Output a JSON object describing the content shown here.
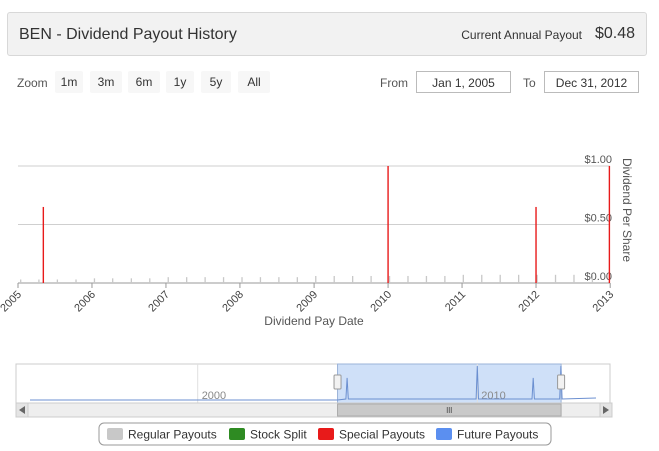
{
  "header": {
    "title": "BEN - Dividend Payout History",
    "current_label": "Current Annual Payout",
    "current_value": "$0.48"
  },
  "controls": {
    "zoom_label": "Zoom",
    "zoom_buttons": [
      "1m",
      "3m",
      "6m",
      "1y",
      "5y",
      "All"
    ],
    "from_label": "From",
    "from_value": "Jan 1, 2005",
    "to_label": "To",
    "to_value": "Dec 31, 2012"
  },
  "legend": [
    "Regular Payouts",
    "Stock Split",
    "Special Payouts",
    "Future Payouts"
  ],
  "colors": {
    "regular": "#c8c8c8",
    "split": "#2e8b22",
    "special": "#e81a1a",
    "future": "#5b8ff0",
    "navigator_line": "#6b8fd0",
    "navigator_selection": "#cfe0f8"
  },
  "chart_data": {
    "type": "bar",
    "xlabel": "Dividend Pay Date",
    "ylabel": "Dividend Per Share",
    "xlim": [
      "2005-01-01",
      "2012-12-31"
    ],
    "ylim": [
      0,
      1.0
    ],
    "y_ticks": [
      "$0.00",
      "$0.50",
      "$1.00"
    ],
    "x_ticks": [
      "2005",
      "2006",
      "2007",
      "2008",
      "2009",
      "2010",
      "2011",
      "2012",
      "2013"
    ],
    "grid": true,
    "series": [
      {
        "name": "Regular Payouts",
        "x": [
          "2005-01-14",
          "2005-04-14",
          "2005-07-14",
          "2005-10-14",
          "2006-01-13",
          "2006-04-13",
          "2006-07-14",
          "2006-10-13",
          "2007-01-12",
          "2007-04-13",
          "2007-07-13",
          "2007-10-12",
          "2008-01-11",
          "2008-04-11",
          "2008-07-11",
          "2008-10-10",
          "2009-01-09",
          "2009-04-10",
          "2009-07-10",
          "2009-10-09",
          "2010-01-08",
          "2010-04-09",
          "2010-07-09",
          "2010-10-08",
          "2011-01-07",
          "2011-04-08",
          "2011-07-08",
          "2011-10-07",
          "2012-01-06",
          "2012-04-06",
          "2012-07-06",
          "2012-10-05"
        ],
        "values": [
          0.03,
          0.03,
          0.03,
          0.03,
          0.04,
          0.04,
          0.04,
          0.04,
          0.05,
          0.05,
          0.05,
          0.05,
          0.05,
          0.05,
          0.05,
          0.05,
          0.06,
          0.06,
          0.06,
          0.06,
          0.06,
          0.06,
          0.06,
          0.06,
          0.07,
          0.07,
          0.07,
          0.07,
          0.07,
          0.07,
          0.07,
          0.07
        ]
      },
      {
        "name": "Special Payouts",
        "x": [
          "2005-05-06",
          "2010-01-01",
          "2012-01-01",
          "2012-12-28"
        ],
        "values": [
          0.65,
          1.0,
          0.65,
          1.0
        ]
      }
    ],
    "navigator": {
      "x_ticks": [
        "2000",
        "2010"
      ],
      "selection": [
        "2005-01-01",
        "2012-12-31"
      ]
    }
  }
}
